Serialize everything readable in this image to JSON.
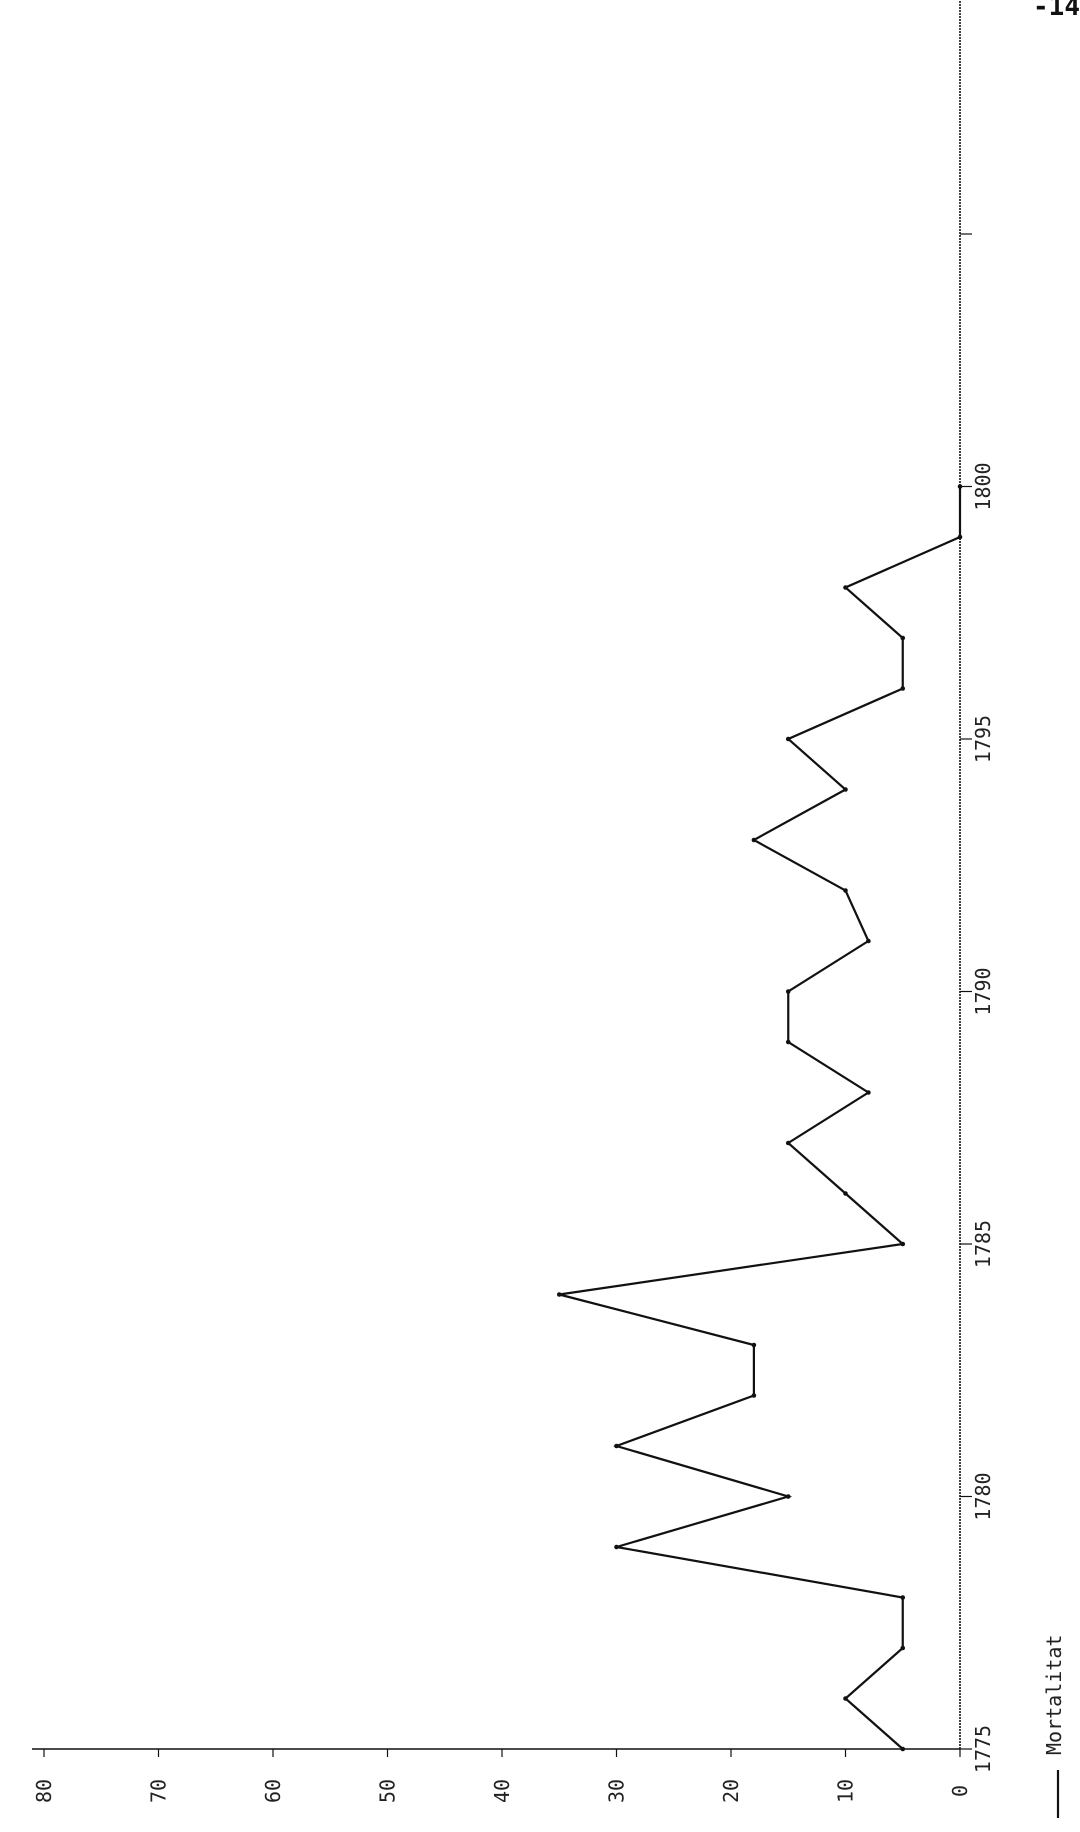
{
  "page_mark": "-14",
  "chart_data": {
    "type": "line",
    "orientation": "rotated-90",
    "x": [
      1775,
      1776,
      1777,
      1778,
      1779,
      1780,
      1781,
      1782,
      1783,
      1784,
      1785,
      1786,
      1787,
      1788,
      1789,
      1790,
      1791,
      1792,
      1793,
      1794,
      1795,
      1796,
      1797,
      1798,
      1799,
      1800
    ],
    "series": [
      {
        "name": "Mortalitat",
        "values": [
          5,
          10,
          5,
          5,
          30,
          15,
          30,
          18,
          18,
          35,
          5,
          10,
          15,
          8,
          15,
          15,
          8,
          10,
          18,
          10,
          15,
          5,
          5,
          10,
          0,
          0
        ]
      }
    ],
    "xlim": [
      1775,
      1810
    ],
    "ylim": [
      0,
      80
    ],
    "x_ticks": [
      1775,
      1780,
      1785,
      1790,
      1795,
      1800
    ],
    "y_ticks": [
      "0",
      "10",
      "20",
      "30",
      "40",
      "50",
      "60",
      "70",
      "80"
    ],
    "x_tick_labels": [
      "1775",
      "1780",
      "1785",
      "1790",
      "1795",
      "1800"
    ],
    "legend": {
      "label": "Mortalitat",
      "position": "bottom-right"
    },
    "grid": false,
    "color": "#111111"
  }
}
